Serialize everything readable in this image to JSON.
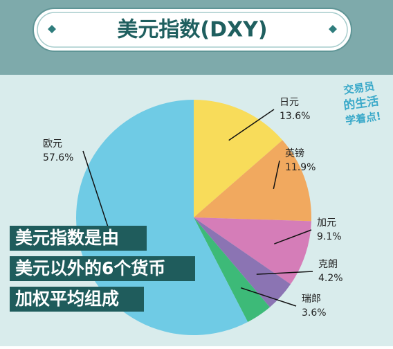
{
  "header": {
    "title": "美元指数(DXY)"
  },
  "logo": {
    "line1": "交易员",
    "line2": "的生活",
    "line3": "学着点!"
  },
  "note": {
    "lines": [
      "美元指数是由",
      "美元以外的6个货币",
      "加权平均组成"
    ]
  },
  "chart_data": {
    "type": "pie",
    "categories": [
      "日元",
      "英镑",
      "加元",
      "克朗",
      "瑞郎",
      "欧元"
    ],
    "values": [
      13.6,
      11.9,
      9.1,
      4.2,
      3.6,
      57.6
    ],
    "value_labels": [
      "13.6%",
      "11.9%",
      "9.1%",
      "4.2%",
      "3.6%",
      "57.6%"
    ],
    "colors": [
      "#f8dc5a",
      "#f1a95f",
      "#d57db8",
      "#8b74b3",
      "#3dba78",
      "#6fcbe5"
    ]
  }
}
